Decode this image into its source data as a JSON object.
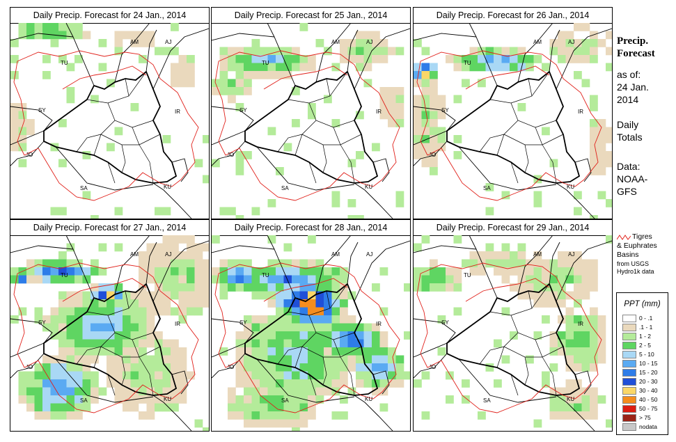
{
  "panels": [
    {
      "title": "Daily Precip. Forecast for  24 Jan., 2014"
    },
    {
      "title": "Daily Precip. Forecast for  25 Jan., 2014"
    },
    {
      "title": "Daily Precip. Forecast for  26 Jan., 2014"
    },
    {
      "title": "Daily Precip. Forecast for  27 Jan., 2014"
    },
    {
      "title": "Daily Precip. Forecast for  28 Jan., 2014"
    },
    {
      "title": "Daily Precip. Forecast for  29 Jan., 2014"
    }
  ],
  "map_labels": {
    "am": "AM",
    "aj": "AJ",
    "tu": "TU",
    "sy": "SY",
    "ir": "IR",
    "jo": "JO",
    "sa": "SA",
    "ku": "KU"
  },
  "side": {
    "title_line1": "Precip.",
    "title_line2": "Forecast",
    "asof_line1": "as of:",
    "asof_line2": "24 Jan.",
    "asof_line3": "2014",
    "daily_line1": "Daily",
    "daily_line2": "Totals",
    "data_line1": "Data:",
    "data_line2": "NOAA-",
    "data_line3": "GFS"
  },
  "basin_legend": {
    "line1": "Tigres",
    "line2": "& Euphrates",
    "line3": "Basins",
    "line4": "from USGS",
    "line5": "Hydro1k data",
    "color": "#e0201a"
  },
  "ppt_legend": {
    "title": "PPT (mm)",
    "items": [
      {
        "label": "0 - .1",
        "color": "#ffffff"
      },
      {
        "label": ".1 - 1",
        "color": "#ead9bd"
      },
      {
        "label": "1 - 2",
        "color": "#b4eb9a"
      },
      {
        "label": "2 - 5",
        "color": "#5fd562"
      },
      {
        "label": "5 - 10",
        "color": "#a9d8f5"
      },
      {
        "label": "10 - 15",
        "color": "#5aaaf2"
      },
      {
        "label": "15 - 20",
        "color": "#2e7ce8"
      },
      {
        "label": "20 - 30",
        "color": "#1f4fd8"
      },
      {
        "label": "30 - 40",
        "color": "#fad768"
      },
      {
        "label": "40 - 50",
        "color": "#f58d1e"
      },
      {
        "label": "50 - 75",
        "color": "#dc1d12"
      },
      {
        "label": "> 75",
        "color": "#9b2418"
      },
      {
        "label": "nodata",
        "color": "#c8c8c8"
      }
    ]
  }
}
